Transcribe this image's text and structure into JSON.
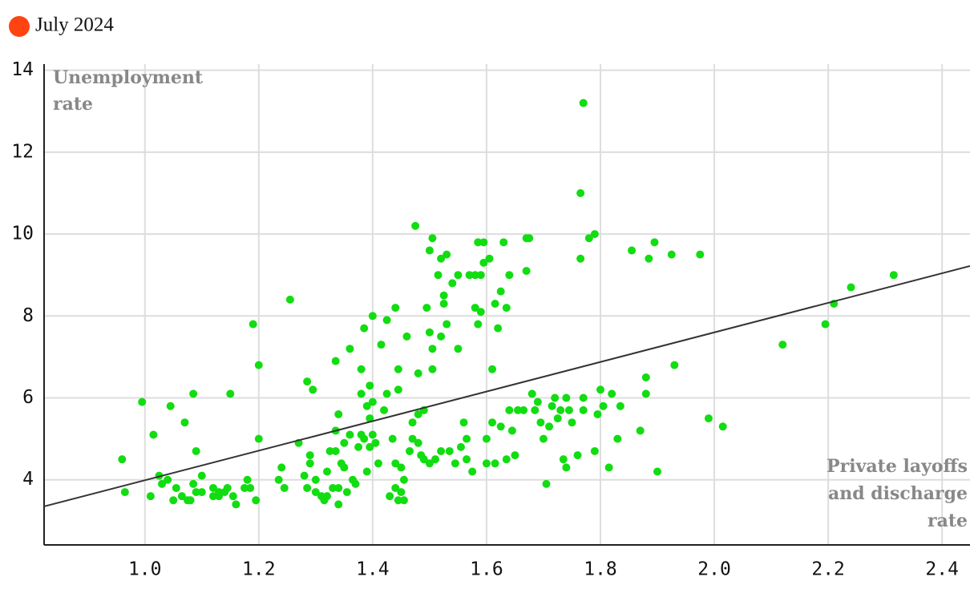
{
  "chart_data": {
    "type": "scatter",
    "legend": [
      {
        "label": "July 2024",
        "color": "#ff4411"
      }
    ],
    "ylabel": [
      "Unemployment",
      "rate"
    ],
    "xlabel": [
      "Private layoffs",
      "and discharge",
      "rate"
    ],
    "xlim": [
      0.823,
      2.449
    ],
    "ylim": [
      2.41,
      14.15
    ],
    "xticks": [
      {
        "value": 1,
        "label": "1.0"
      },
      1.2,
      1.4,
      1.6,
      1.8,
      {
        "value": 2,
        "label": "2.0"
      },
      2.2,
      2.4
    ],
    "yticks": [
      4,
      6,
      8,
      10,
      12,
      14
    ],
    "grid": true,
    "trendline": {
      "color": "#333333",
      "x": [
        0.823,
        2.449
      ],
      "y": [
        3.35,
        9.22
      ]
    },
    "series": [
      {
        "color": "#11dd11",
        "x": [
          0.96,
          0.965,
          0.995,
          1.01,
          1.015,
          1.025,
          1.03,
          1.04,
          1.045,
          1.05,
          1.055,
          1.065,
          1.07,
          1.075,
          1.08,
          1.085,
          1.085,
          1.09,
          1.09,
          1.1,
          1.1,
          1.12,
          1.12,
          1.13,
          1.13,
          1.14,
          1.145,
          1.15,
          1.155,
          1.16,
          1.175,
          1.18,
          1.185,
          1.19,
          1.195,
          1.2,
          1.2,
          1.235,
          1.24,
          1.245,
          1.255,
          1.27,
          1.28,
          1.285,
          1.285,
          1.29,
          1.29,
          1.295,
          1.3,
          1.3,
          1.31,
          1.315,
          1.32,
          1.32,
          1.325,
          1.33,
          1.335,
          1.335,
          1.335,
          1.34,
          1.34,
          1.34,
          1.345,
          1.35,
          1.35,
          1.355,
          1.36,
          1.36,
          1.365,
          1.37,
          1.375,
          1.38,
          1.38,
          1.38,
          1.385,
          1.385,
          1.39,
          1.39,
          1.395,
          1.395,
          1.395,
          1.4,
          1.4,
          1.4,
          1.405,
          1.41,
          1.415,
          1.42,
          1.425,
          1.425,
          1.43,
          1.435,
          1.44,
          1.44,
          1.44,
          1.445,
          1.445,
          1.445,
          1.45,
          1.45,
          1.455,
          1.455,
          1.46,
          1.465,
          1.47,
          1.47,
          1.475,
          1.48,
          1.48,
          1.48,
          1.485,
          1.49,
          1.49,
          1.495,
          1.5,
          1.5,
          1.5,
          1.505,
          1.505,
          1.505,
          1.51,
          1.515,
          1.52,
          1.52,
          1.52,
          1.525,
          1.525,
          1.53,
          1.53,
          1.535,
          1.54,
          1.545,
          1.55,
          1.55,
          1.555,
          1.56,
          1.565,
          1.565,
          1.57,
          1.575,
          1.58,
          1.58,
          1.585,
          1.585,
          1.59,
          1.59,
          1.595,
          1.595,
          1.6,
          1.6,
          1.605,
          1.61,
          1.61,
          1.615,
          1.615,
          1.62,
          1.625,
          1.625,
          1.63,
          1.635,
          1.635,
          1.64,
          1.64,
          1.645,
          1.65,
          1.655,
          1.665,
          1.67,
          1.67,
          1.675,
          1.68,
          1.685,
          1.69,
          1.695,
          1.7,
          1.705,
          1.71,
          1.715,
          1.72,
          1.725,
          1.73,
          1.735,
          1.74,
          1.74,
          1.745,
          1.75,
          1.76,
          1.765,
          1.765,
          1.77,
          1.77,
          1.77,
          1.78,
          1.79,
          1.79,
          1.795,
          1.8,
          1.805,
          1.815,
          1.82,
          1.83,
          1.835,
          1.855,
          1.87,
          1.88,
          1.88,
          1.885,
          1.895,
          1.9,
          1.925,
          1.93,
          1.975,
          1.99,
          2.015,
          2.12,
          2.195,
          2.21,
          2.24,
          2.315
        ],
        "values": [
          4.5,
          3.7,
          5.9,
          3.6,
          5.1,
          4.1,
          3.9,
          4.0,
          5.8,
          3.5,
          3.8,
          3.6,
          5.4,
          3.5,
          3.5,
          6.1,
          3.9,
          4.7,
          3.7,
          4.1,
          3.7,
          3.8,
          3.6,
          3.6,
          3.7,
          3.7,
          3.8,
          6.1,
          3.6,
          3.4,
          3.8,
          4.0,
          3.8,
          7.8,
          3.5,
          6.8,
          5.0,
          4.0,
          4.3,
          3.8,
          8.4,
          4.9,
          4.1,
          6.4,
          3.8,
          4.6,
          4.4,
          6.2,
          3.7,
          4.0,
          3.6,
          3.5,
          4.2,
          3.6,
          4.7,
          3.8,
          6.9,
          5.2,
          4.7,
          3.8,
          5.6,
          3.4,
          4.4,
          4.9,
          4.3,
          3.7,
          7.2,
          5.1,
          4.0,
          3.9,
          4.8,
          5.1,
          6.1,
          6.7,
          5.0,
          7.7,
          4.2,
          5.8,
          6.3,
          5.5,
          4.8,
          8.0,
          5.9,
          5.1,
          4.9,
          4.4,
          7.3,
          5.7,
          6.1,
          7.9,
          3.6,
          5.0,
          8.2,
          3.8,
          4.4,
          6.7,
          6.2,
          3.5,
          4.3,
          3.7,
          3.5,
          4.0,
          7.5,
          4.7,
          5.4,
          5.0,
          10.2,
          4.9,
          5.6,
          6.6,
          4.6,
          5.7,
          4.5,
          8.2,
          9.6,
          7.6,
          4.4,
          9.9,
          6.7,
          7.2,
          4.5,
          9.0,
          9.4,
          7.5,
          4.7,
          8.5,
          8.3,
          9.5,
          7.8,
          4.7,
          8.8,
          4.4,
          9.0,
          7.2,
          4.8,
          5.4,
          4.5,
          5.0,
          9.0,
          4.2,
          9.0,
          8.2,
          9.8,
          7.8,
          8.1,
          9.0,
          9.3,
          9.8,
          4.4,
          5.0,
          9.4,
          6.7,
          5.4,
          4.4,
          8.3,
          7.7,
          5.3,
          8.6,
          9.8,
          4.5,
          8.2,
          9.0,
          5.7,
          5.2,
          4.6,
          5.7,
          5.7,
          9.9,
          9.1,
          9.9,
          6.1,
          5.7,
          5.9,
          5.4,
          5.0,
          3.9,
          5.3,
          5.8,
          6.0,
          5.5,
          5.7,
          4.5,
          4.3,
          6.0,
          5.7,
          5.4,
          4.6,
          9.4,
          11.0,
          13.2,
          5.7,
          6.0,
          9.9,
          10.0,
          4.7,
          5.6,
          6.2,
          5.8,
          4.3,
          6.1,
          5.0,
          5.8,
          9.6,
          5.2,
          6.5,
          6.1,
          9.4,
          9.8,
          4.2,
          9.5,
          6.8,
          9.5,
          5.5,
          5.3,
          7.3,
          7.8,
          8.3,
          8.7,
          9.0
        ]
      }
    ]
  }
}
